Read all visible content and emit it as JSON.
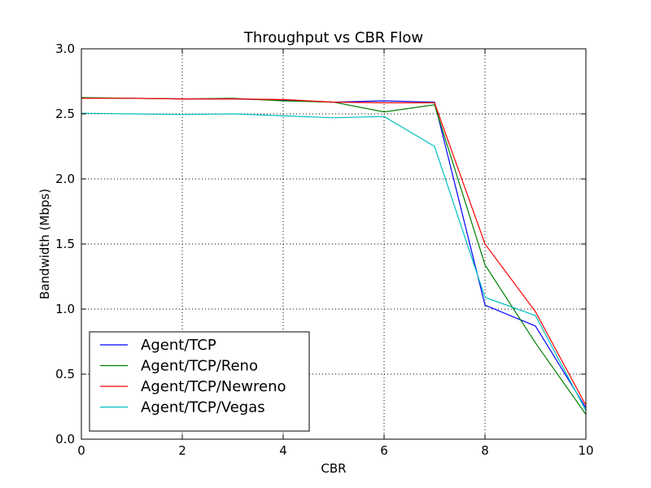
{
  "chart_data": {
    "type": "line",
    "title": "Throughput vs CBR Flow",
    "xlabel": "CBR",
    "ylabel": "Bandwidth (Mbps)",
    "xlim": [
      0,
      10
    ],
    "ylim": [
      0,
      3.0
    ],
    "xticks": [
      "0",
      "2",
      "4",
      "6",
      "8",
      "10"
    ],
    "yticks": [
      "0.0",
      "0.5",
      "1.0",
      "1.5",
      "2.0",
      "2.5",
      "3.0"
    ],
    "grid": true,
    "legend_position": "lower-left",
    "x": [
      0,
      1,
      2,
      3,
      4,
      5,
      6,
      7,
      8,
      9,
      10
    ],
    "series": [
      {
        "name": "Agent/TCP",
        "color": "#0000ff",
        "values": [
          2.62,
          2.62,
          2.615,
          2.615,
          2.605,
          2.59,
          2.6,
          2.59,
          1.03,
          0.87,
          0.24
        ]
      },
      {
        "name": "Agent/TCP/Reno",
        "color": "#008000",
        "values": [
          2.625,
          2.62,
          2.615,
          2.62,
          2.6,
          2.59,
          2.515,
          2.57,
          1.34,
          0.74,
          0.19
        ]
      },
      {
        "name": "Agent/TCP/Newreno",
        "color": "#ff0000",
        "values": [
          2.62,
          2.62,
          2.615,
          2.615,
          2.61,
          2.59,
          2.585,
          2.585,
          1.5,
          0.98,
          0.26
        ]
      },
      {
        "name": "Agent/TCP/Vegas",
        "color": "#00bfbf",
        "values": [
          2.505,
          2.5,
          2.495,
          2.5,
          2.485,
          2.47,
          2.48,
          2.25,
          1.09,
          0.95,
          0.22
        ]
      }
    ]
  }
}
